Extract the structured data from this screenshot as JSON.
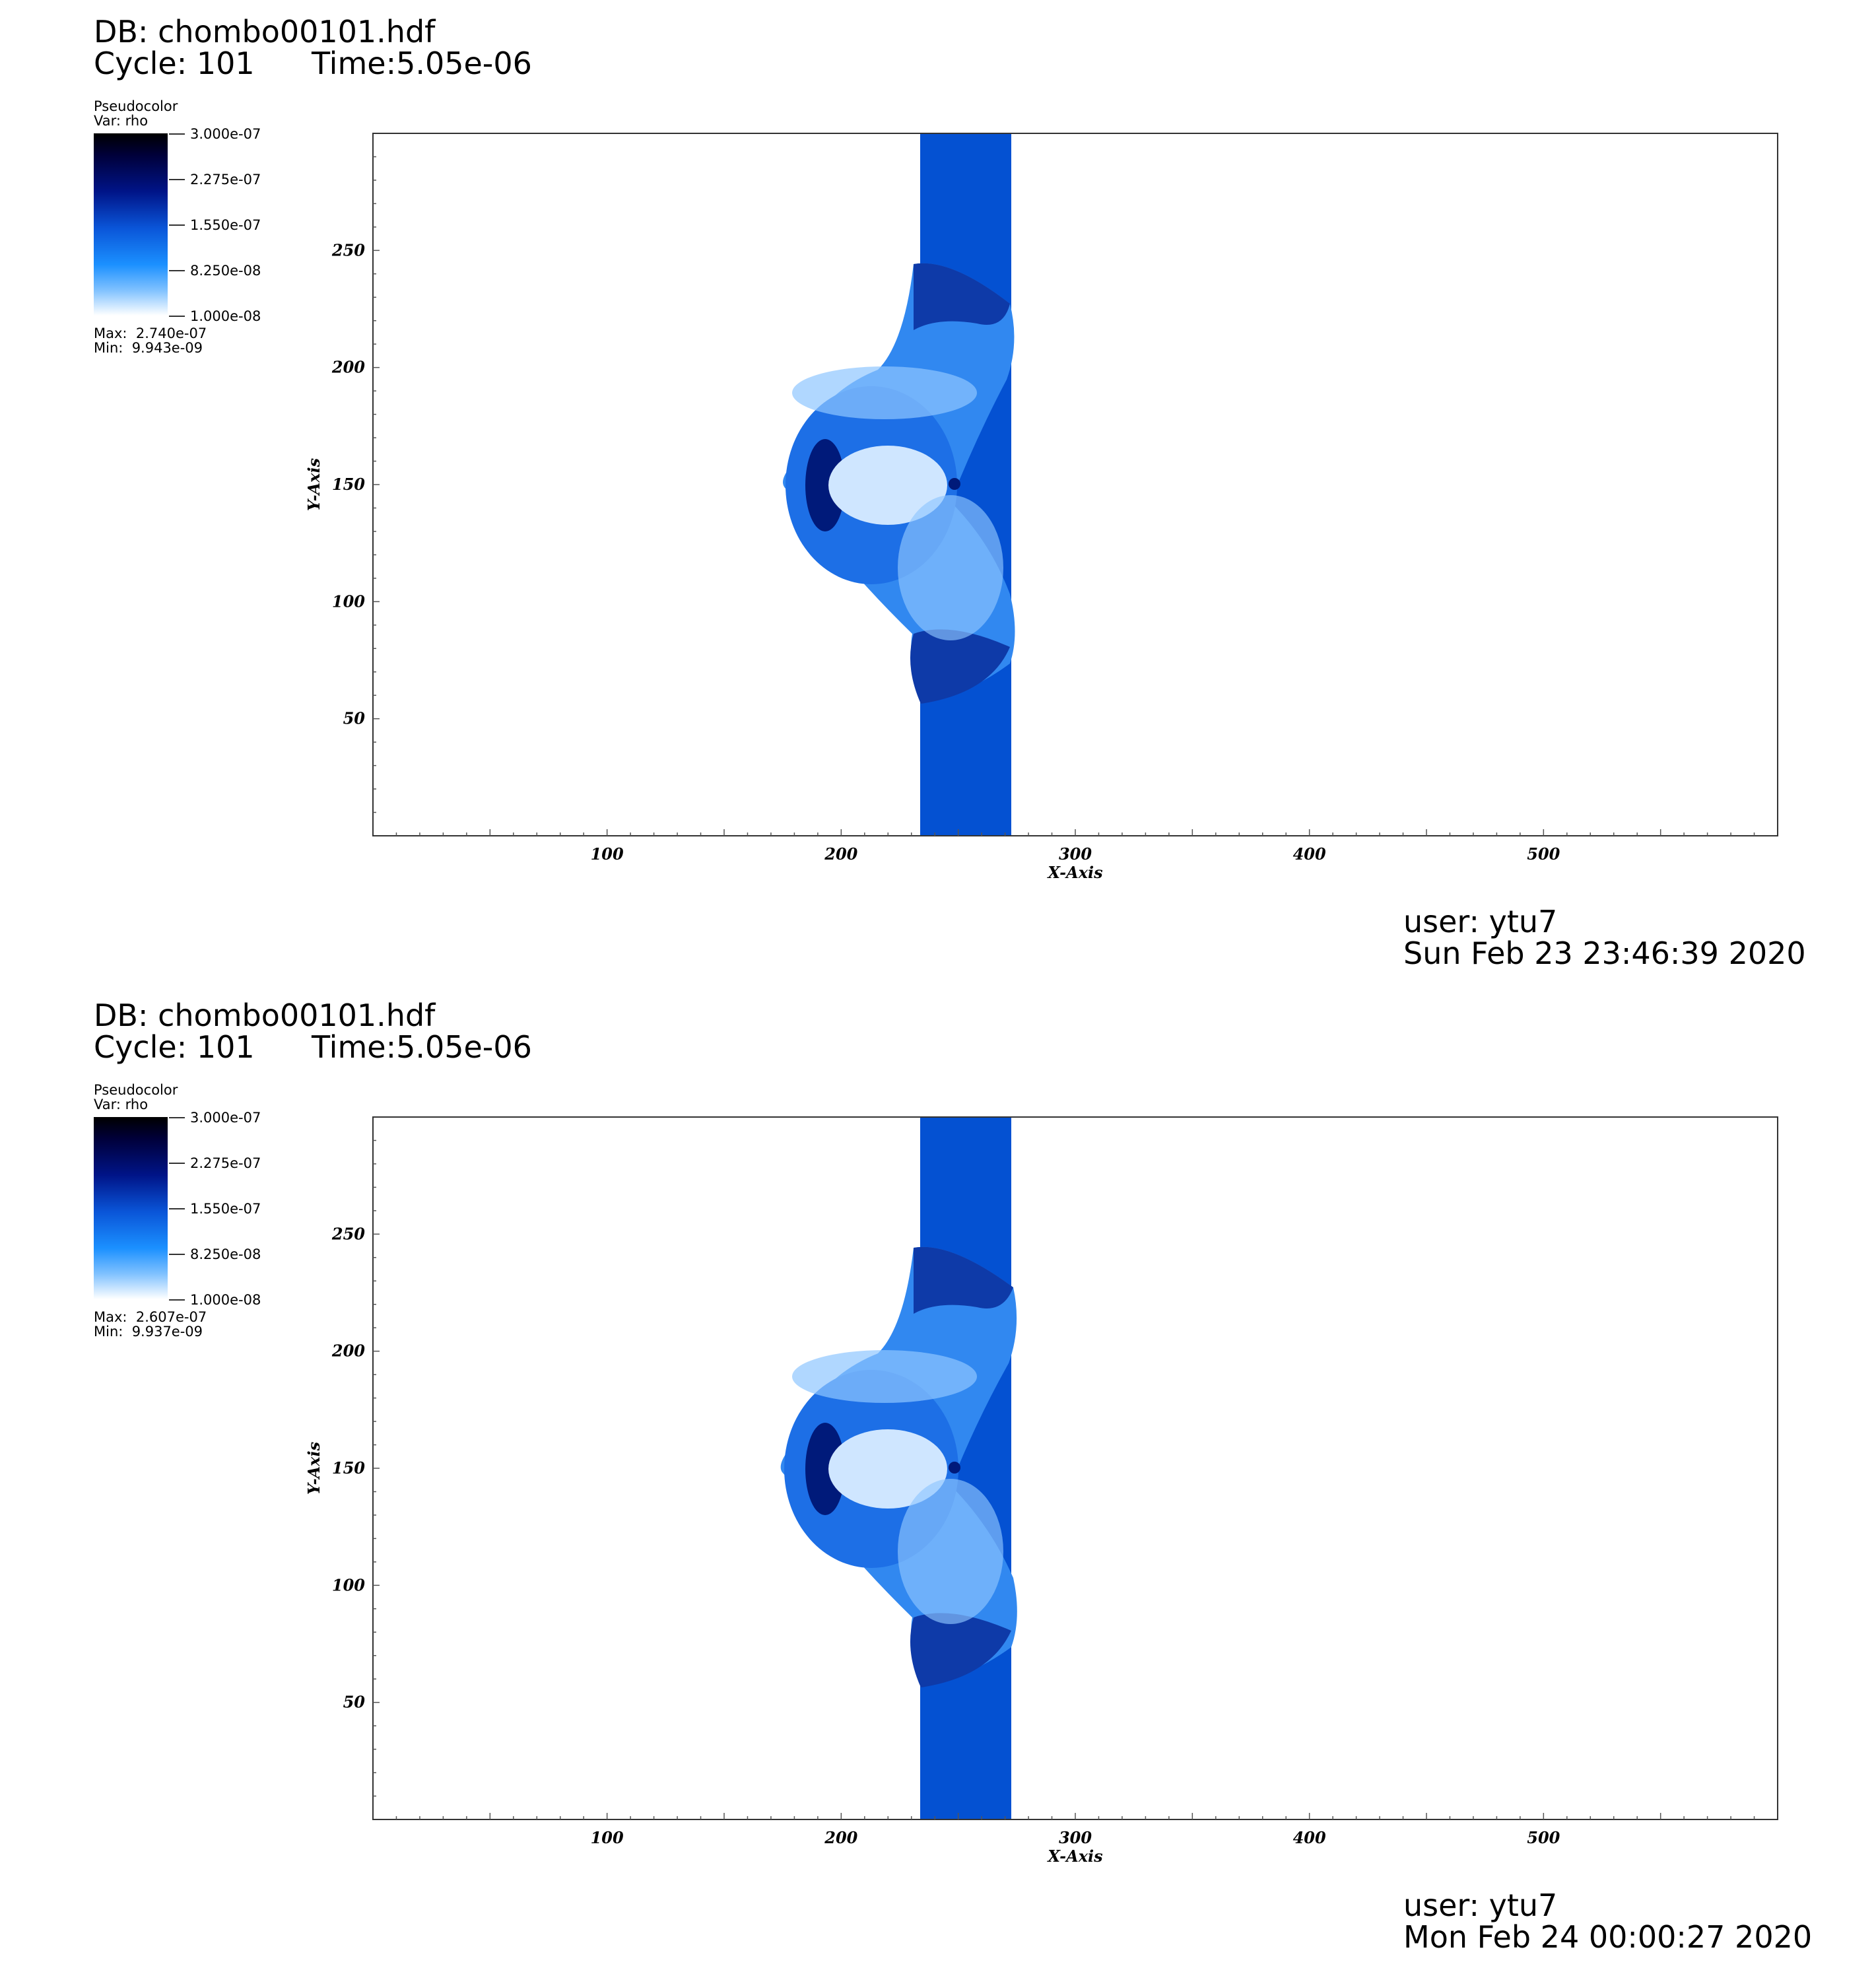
{
  "panels": [
    {
      "db_line": "DB: chombo00101.hdf",
      "cycle_line": "Cycle: 101",
      "time_label": "Time:5.05e-06",
      "legend": {
        "title": "Pseudocolor",
        "var": "Var: rho",
        "ticks": [
          "3.000e-07",
          "2.275e-07",
          "1.550e-07",
          "8.250e-08",
          "1.000e-08"
        ],
        "max": "Max:  2.740e-07",
        "min": "Min:  9.943e-09"
      },
      "user": "user: ytu7",
      "date": "Sun Feb 23 23:46:39 2020"
    },
    {
      "db_line": "DB: chombo00101.hdf",
      "cycle_line": "Cycle: 101",
      "time_label": "Time:5.05e-06",
      "legend": {
        "title": "Pseudocolor",
        "var": "Var: rho",
        "ticks": [
          "3.000e-07",
          "2.275e-07",
          "1.550e-07",
          "8.250e-08",
          "1.000e-08"
        ],
        "max": "Max:  2.607e-07",
        "min": "Min:  9.937e-09"
      },
      "user": "user: ytu7",
      "date": "Mon Feb 24 00:00:27 2020"
    }
  ],
  "chart_data": [
    {
      "type": "heatmap",
      "title": "",
      "xlabel": "X-Axis",
      "ylabel": "Y-Axis",
      "xlim": [
        0,
        600
      ],
      "ylim": [
        0,
        300
      ],
      "xticks": [
        100,
        200,
        300,
        400,
        500
      ],
      "yticks": [
        50,
        100,
        150,
        200,
        250
      ],
      "variable": "rho",
      "colormap": [
        "#ffffff",
        "#1b90ff",
        "#0a55d8",
        "#001488",
        "#000000"
      ],
      "color_range": [
        1e-08,
        3e-07
      ],
      "data_max": 2.74e-07,
      "data_min": 9.943e-09,
      "grid": false
    },
    {
      "type": "heatmap",
      "title": "",
      "xlabel": "X-Axis",
      "ylabel": "Y-Axis",
      "xlim": [
        0,
        600
      ],
      "ylim": [
        0,
        300
      ],
      "xticks": [
        100,
        200,
        300,
        400,
        500
      ],
      "yticks": [
        50,
        100,
        150,
        200,
        250
      ],
      "variable": "rho",
      "colormap": [
        "#ffffff",
        "#1b90ff",
        "#0a55d8",
        "#001488",
        "#000000"
      ],
      "color_range": [
        1e-08,
        3e-07
      ],
      "data_max": 2.607e-07,
      "data_min": 9.937e-09,
      "grid": false
    }
  ]
}
